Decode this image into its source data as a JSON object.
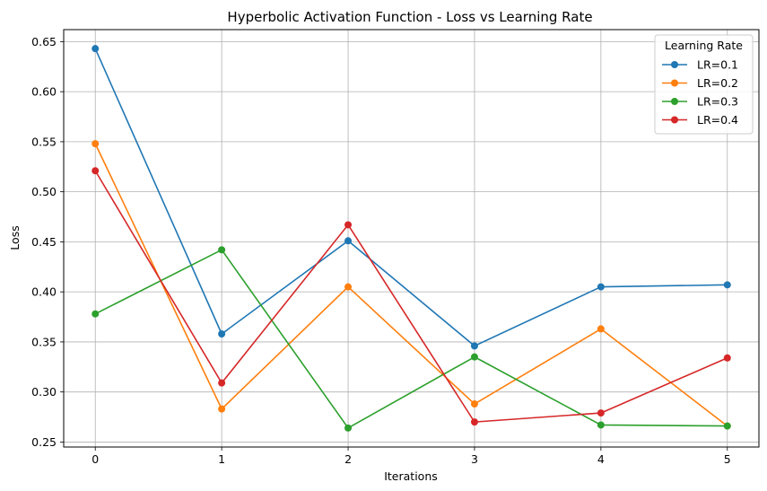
{
  "chart_data": {
    "type": "line",
    "title": "Hyperbolic Activation Function - Loss vs Learning Rate",
    "xlabel": "Iterations",
    "ylabel": "Loss",
    "x": [
      0,
      1,
      2,
      3,
      4,
      5
    ],
    "xticks": [
      "0",
      "1",
      "2",
      "3",
      "4",
      "5"
    ],
    "yticks": [
      "0.25",
      "0.30",
      "0.35",
      "0.40",
      "0.45",
      "0.50",
      "0.55",
      "0.60",
      "0.65"
    ],
    "ylim": [
      0.245,
      0.662
    ],
    "xlim": [
      -0.25,
      5.25
    ],
    "grid": true,
    "legend": {
      "title": "Learning Rate",
      "position": "top-right"
    },
    "series": [
      {
        "name": "LR=0.1",
        "color": "#1f77b4",
        "values": [
          0.643,
          0.358,
          0.451,
          0.346,
          0.405,
          0.407
        ]
      },
      {
        "name": "LR=0.2",
        "color": "#ff7f0e",
        "values": [
          0.548,
          0.283,
          0.405,
          0.288,
          0.363,
          0.266
        ]
      },
      {
        "name": "LR=0.3",
        "color": "#2ca02c",
        "values": [
          0.378,
          0.442,
          0.264,
          0.335,
          0.267,
          0.266
        ]
      },
      {
        "name": "LR=0.4",
        "color": "#d62728",
        "values": [
          0.521,
          0.309,
          0.467,
          0.27,
          0.279,
          0.334
        ]
      }
    ]
  }
}
